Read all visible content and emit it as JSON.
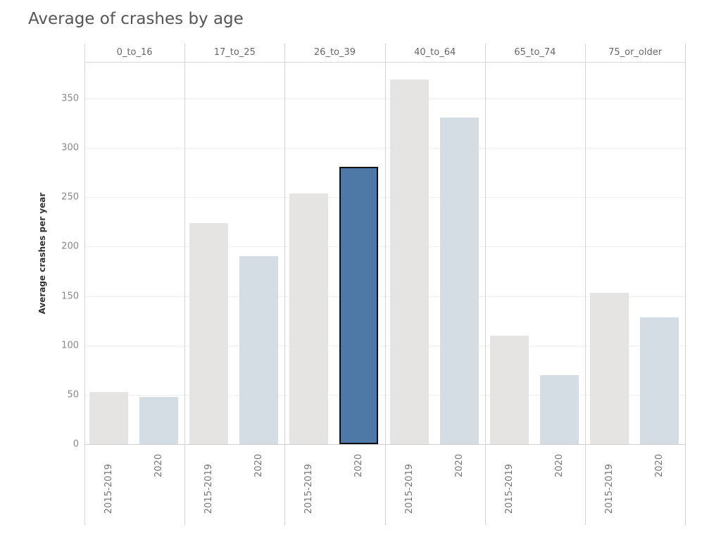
{
  "title": "Average of crashes by age",
  "colors": {
    "base_period": "#e6e4e2",
    "year_2020": "#d5dde4",
    "highlight": "#4e79a7",
    "highlight_border": "#111111"
  },
  "chart_data": {
    "type": "bar",
    "title": "Average of crashes by age",
    "xlabel": "",
    "ylabel": "Average crashes per year",
    "ylim": [
      0,
      385
    ],
    "yticks": [
      0,
      50,
      100,
      150,
      200,
      250,
      300,
      350
    ],
    "grid": true,
    "legend": "none",
    "categories": [
      "0_to_16",
      "17_to_25",
      "26_to_39",
      "40_to_64",
      "65_to_74",
      "75_or_older"
    ],
    "subcategories": [
      "2015-2019",
      "2020"
    ],
    "series": [
      {
        "name": "2015-2019",
        "values": [
          53,
          224,
          254,
          369,
          110,
          153
        ]
      },
      {
        "name": "2020",
        "values": [
          48,
          190,
          281,
          331,
          70,
          128
        ]
      }
    ],
    "highlighted": {
      "category": "26_to_39",
      "series": "2020",
      "value": 281
    }
  },
  "axis": {
    "ylabel": "Average crashes per year",
    "ticks": [
      "0",
      "50",
      "100",
      "150",
      "200",
      "250",
      "300",
      "350"
    ]
  },
  "panels": [
    {
      "label": "0_to_16",
      "bars": [
        {
          "label": "2015-2019"
        },
        {
          "label": "2020"
        }
      ]
    },
    {
      "label": "17_to_25",
      "bars": [
        {
          "label": "2015-2019"
        },
        {
          "label": "2020"
        }
      ]
    },
    {
      "label": "26_to_39",
      "bars": [
        {
          "label": "2015-2019"
        },
        {
          "label": "2020"
        }
      ]
    },
    {
      "label": "40_to_64",
      "bars": [
        {
          "label": "2015-2019"
        },
        {
          "label": "2020"
        }
      ]
    },
    {
      "label": "65_to_74",
      "bars": [
        {
          "label": "2015-2019"
        },
        {
          "label": "2020"
        }
      ]
    },
    {
      "label": "75_or_older",
      "bars": [
        {
          "label": "2015-2019"
        },
        {
          "label": "2020"
        }
      ]
    }
  ]
}
